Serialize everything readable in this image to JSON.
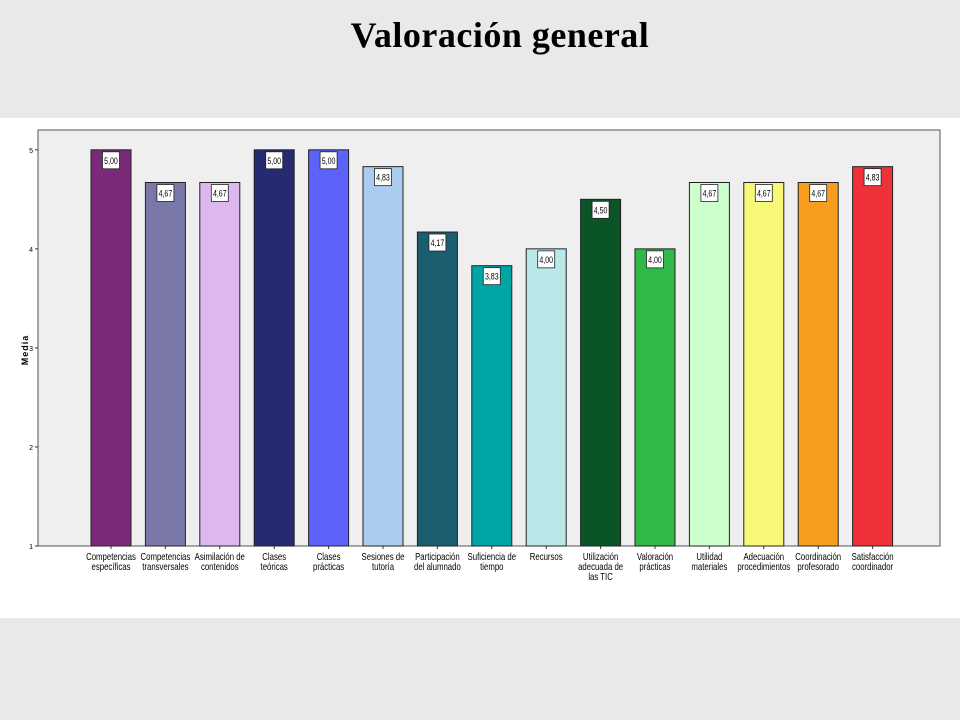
{
  "slide": {
    "title": "Valoración general"
  },
  "chart_data": {
    "type": "bar",
    "title": "Valoración general",
    "ylabel": "Media",
    "xlabel": "",
    "ylim": [
      1,
      5.2
    ],
    "yticks": [
      "1",
      "2",
      "3",
      "4",
      "5"
    ],
    "grid": false,
    "plot_background": "#efefef",
    "categories": [
      [
        "Competencias",
        "específicas"
      ],
      [
        "Competencias",
        "transversales"
      ],
      [
        "Asimilación de",
        "contenidos"
      ],
      [
        "Clases",
        "teóricas"
      ],
      [
        "Clases",
        "prácticas"
      ],
      [
        "Sesiones de",
        "tutoría"
      ],
      [
        "Participación",
        "del alumnado"
      ],
      [
        "Suficiencia de",
        "tiempo"
      ],
      [
        "Recursos"
      ],
      [
        "Utilización",
        "adecuada de",
        "las TIC"
      ],
      [
        "Valoración",
        "prácticas"
      ],
      [
        "Utilidad",
        "materiales"
      ],
      [
        "Adecuación",
        "procedimientos"
      ],
      [
        "Coordinación",
        "profesorado"
      ],
      [
        "Satisfacción",
        "coordinador"
      ]
    ],
    "values": [
      5.0,
      4.67,
      4.67,
      5.0,
      5.0,
      4.83,
      4.17,
      3.83,
      4.0,
      4.5,
      4.0,
      4.67,
      4.67,
      4.67,
      4.83
    ],
    "labels": [
      "5,00",
      "4,67",
      "4,67",
      "5,00",
      "5,00",
      "4,83",
      "4,17",
      "3,83",
      "4,00",
      "4,50",
      "4,00",
      "4,67",
      "4,67",
      "4,67",
      "4,83"
    ],
    "colors": [
      "#7a2a78",
      "#7a78a8",
      "#ddb8f0",
      "#262a70",
      "#5c62fa",
      "#aaccee",
      "#1a5e70",
      "#00a6a6",
      "#b8e8e8",
      "#0a5428",
      "#30b848",
      "#ccffcc",
      "#f8f878",
      "#f89c20",
      "#ee3038"
    ]
  }
}
